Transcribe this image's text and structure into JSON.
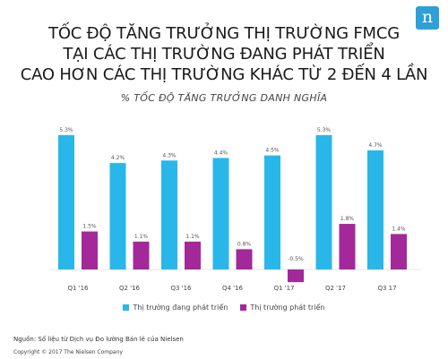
{
  "header": {
    "title_lines": [
      "TỐC ĐỘ TĂNG TRƯỞNG THỊ TRƯỜNG FMCG",
      "TẠI CÁC THỊ TRƯỜNG ĐANG PHÁT TRIỂN",
      "CAO HƠN CÁC THỊ TRƯỜNG KHÁC TỪ 2 ĐẾN 4 LẦN"
    ],
    "subtitle": "% TỐC ĐỘ TĂNG TRƯỞNG DANH NGHĨA",
    "logo_letter": "n"
  },
  "chart_data": {
    "type": "bar",
    "categories": [
      "Q1 '16",
      "Q2 '16",
      "Q3 '16",
      "Q4 '16",
      "Q1 '17",
      "Q2 '17",
      "Q3 17"
    ],
    "series": [
      {
        "name": "Thị trường đang phát triển",
        "color": "#29b6e8",
        "values": [
          5.3,
          4.2,
          4.3,
          4.4,
          4.5,
          5.3,
          4.7
        ],
        "labels": [
          "5.3%",
          "4.2%",
          "4.3%",
          "4.4%",
          "4.5%",
          "5.3%",
          "4.7%"
        ]
      },
      {
        "name": "Thị trường phát triển",
        "color": "#a3299a",
        "values": [
          1.5,
          1.1,
          1.1,
          0.8,
          -0.5,
          1.8,
          1.4
        ],
        "labels": [
          "1.5%",
          "1.1%",
          "1.1%",
          "0.8%",
          "-0.5%",
          "1.8%",
          "1.4%"
        ]
      }
    ],
    "ylim": [
      -0.6,
      5.5
    ],
    "grid": false,
    "legend": "bottom"
  },
  "footer": {
    "source": "Nguồn: Số liệu từ Dịch vụ Đo lường Bán lẻ của Nielsen",
    "copyright": "Copyright © 2017 The Nielsen Company"
  }
}
